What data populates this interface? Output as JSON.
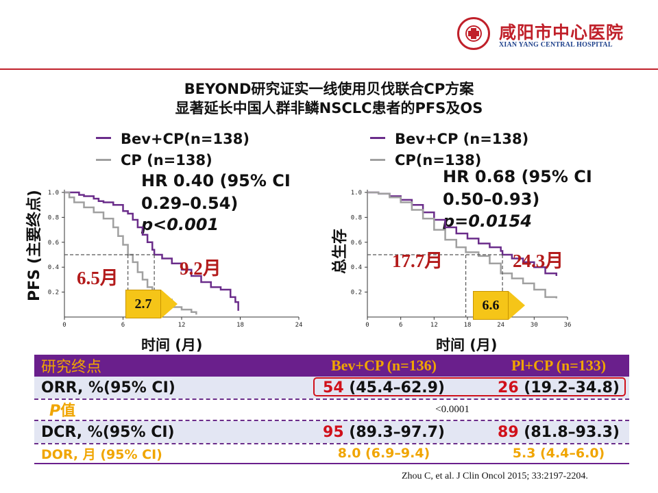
{
  "header": {
    "hospital_cn": "咸阳市中心医院",
    "hospital_en": "XIAN YANG CENTRAL HOSPITAL",
    "title_line1": "BEYOND研究证实一线使用贝伐联合CP方案",
    "title_line2": "显著延长中国人群非鳞NSCLC患者的PFS及OS"
  },
  "colors": {
    "bev": "#6a2c8a",
    "cp": "#a0a0a0",
    "accent_red": "#b31b1b",
    "table_header": "#6a1f8c",
    "table_stripe": "#e3e6f3",
    "gold": "#f0a500"
  },
  "chart_data": [
    {
      "type": "line",
      "name": "pfs",
      "ylabel": "PFS (主要终点)",
      "xlabel": "时间 (月)",
      "xticks": [
        0,
        6,
        12,
        18,
        24
      ],
      "yticks": [
        "0.2",
        "0.4",
        "0.6",
        "0.8",
        "1.0"
      ],
      "xlim": [
        0,
        24
      ],
      "ylim": [
        0,
        1.0
      ],
      "legend": [
        "Bev+CP(n=138)",
        "CP (n=138)"
      ],
      "hr_lines": [
        "HR 0.40 (95% CI",
        "0.29–0.54)",
        "p<0.001"
      ],
      "median_bev_label": "9.2月",
      "median_cp_label": "6.5月",
      "difference_label": "2.7",
      "median_bev": 9.2,
      "median_cp": 6.5,
      "series": [
        {
          "name": "Bev+CP(n=138)",
          "x": [
            0,
            1,
            1.5,
            2,
            3,
            3.5,
            4,
            5,
            6,
            6.5,
            7,
            7.5,
            8,
            8.5,
            9,
            9.2,
            10,
            11,
            12,
            13,
            14,
            15,
            16,
            17,
            17.5,
            17.8
          ],
          "y": [
            1.0,
            1.0,
            0.98,
            0.97,
            0.95,
            0.93,
            0.92,
            0.9,
            0.85,
            0.83,
            0.78,
            0.72,
            0.66,
            0.6,
            0.54,
            0.5,
            0.47,
            0.43,
            0.38,
            0.33,
            0.28,
            0.24,
            0.22,
            0.16,
            0.12,
            0.05
          ]
        },
        {
          "name": "CP (n=138)",
          "x": [
            0,
            0.5,
            1,
            2,
            3,
            4,
            5,
            5.5,
            6,
            6.5,
            7,
            7.5,
            8,
            8.5,
            9,
            10,
            11,
            12,
            13,
            13.5
          ],
          "y": [
            1.0,
            0.96,
            0.92,
            0.88,
            0.84,
            0.79,
            0.72,
            0.65,
            0.58,
            0.5,
            0.44,
            0.36,
            0.3,
            0.24,
            0.2,
            0.14,
            0.08,
            0.06,
            0.04,
            0.02
          ]
        }
      ]
    },
    {
      "type": "line",
      "name": "os",
      "ylabel": "总生存",
      "xlabel": "时间 (月)",
      "xticks": [
        0,
        6,
        12,
        18,
        24,
        30,
        36
      ],
      "yticks": [
        "0.2",
        "0.4",
        "0.6",
        "0.8",
        "1.0"
      ],
      "xlim": [
        0,
        36
      ],
      "ylim": [
        0,
        1.0
      ],
      "legend": [
        "Bev+CP (n=138)",
        "CP(n=138)"
      ],
      "hr_lines": [
        "HR 0.68 (95% CI",
        "0.50–0.93)",
        "p=0.0154"
      ],
      "median_bev_label": "24.3月",
      "median_cp_label": "17.7月",
      "difference_label": "6.6",
      "median_bev": 24.3,
      "median_cp": 17.7,
      "series": [
        {
          "name": "Bev+CP (n=138)",
          "x": [
            0,
            2,
            4,
            6,
            8,
            10,
            12,
            14,
            16,
            18,
            20,
            22,
            24,
            24.3,
            26,
            28,
            30,
            32,
            34
          ],
          "y": [
            1.0,
            0.99,
            0.97,
            0.94,
            0.9,
            0.84,
            0.78,
            0.72,
            0.67,
            0.63,
            0.59,
            0.56,
            0.53,
            0.5,
            0.47,
            0.44,
            0.4,
            0.35,
            0.33
          ]
        },
        {
          "name": "CP(n=138)",
          "x": [
            0,
            2,
            4,
            6,
            8,
            10,
            12,
            14,
            16,
            17.7,
            20,
            22,
            24,
            26,
            28,
            30,
            32,
            34
          ],
          "y": [
            1.0,
            0.99,
            0.96,
            0.92,
            0.86,
            0.79,
            0.7,
            0.62,
            0.56,
            0.52,
            0.49,
            0.43,
            0.35,
            0.31,
            0.27,
            0.22,
            0.16,
            0.15
          ]
        }
      ]
    }
  ],
  "table": {
    "header": {
      "label": "研究终点",
      "col1": "Bev+CP (n=136)",
      "col2": "Pl+CP (n=133)"
    },
    "orr": {
      "label": "ORR,  %(95% CI)",
      "v1_main": "54",
      "v1_ci": " (45.4–62.9)",
      "v2_main": "26",
      "v2_ci": " (19.2–34.8)"
    },
    "pval": {
      "label_p": "P",
      "label_rest": "值",
      "value": "<0.0001"
    },
    "dcr": {
      "label": "DCR,  %(95% CI)",
      "v1_main": "95",
      "v1_ci": " (89.3–97.7)",
      "v2_main": "89",
      "v2_ci": " (81.8–93.3)"
    },
    "dor": {
      "label": "DOR,  月 (95% CI)",
      "v1": "8.0  (6.9–9.4)",
      "v2": "5.3  (4.4–6.0)"
    }
  },
  "citation": "Zhou C, et al. J Clin Oncol 2015; 33:2197-2204."
}
